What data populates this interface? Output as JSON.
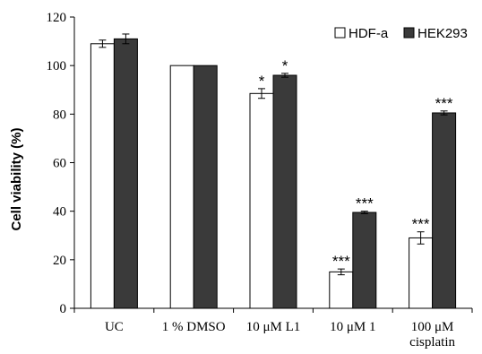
{
  "chart_data": {
    "type": "bar",
    "title": "",
    "xlabel": "",
    "ylabel": "Cell viability (%)",
    "ylim": [
      0,
      120
    ],
    "yticks": [
      0,
      20,
      40,
      60,
      80,
      100,
      120
    ],
    "categories": [
      [
        "UC"
      ],
      [
        "1 % DMSO"
      ],
      [
        "10 μM L1"
      ],
      [
        "10 μM 1"
      ],
      [
        "100 μM",
        "cisplatin"
      ]
    ],
    "legend_position": "top-right",
    "grid": false,
    "series": [
      {
        "name": "HDF-a",
        "color": "#ffffff",
        "values": [
          109,
          100,
          88.5,
          15,
          29
        ],
        "errors": [
          1.5,
          0,
          2,
          1.2,
          2.5
        ],
        "significance": [
          "",
          "",
          "*",
          "***",
          "***"
        ]
      },
      {
        "name": "HEK293",
        "color": "#3a3a3a",
        "values": [
          111,
          100,
          96,
          39.5,
          80.5
        ],
        "errors": [
          2,
          0,
          0.8,
          0.5,
          0.8
        ],
        "significance": [
          "",
          "",
          "*",
          "***",
          "***"
        ]
      }
    ]
  }
}
